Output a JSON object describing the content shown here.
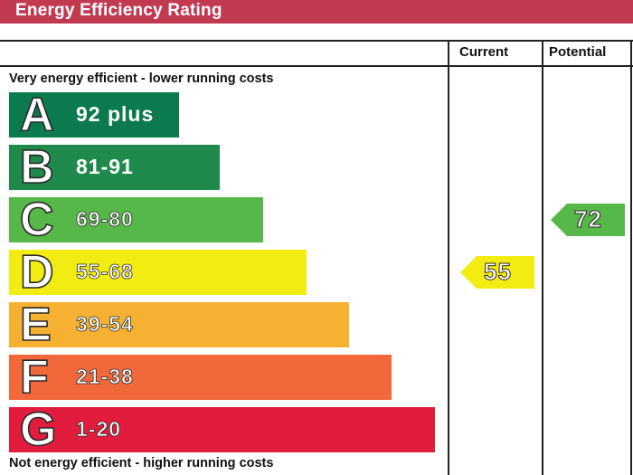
{
  "header": {
    "title": "Energy Efficiency Rating"
  },
  "columns": {
    "current": "Current",
    "potential": "Potential"
  },
  "notes": {
    "top": "Very energy efficient - lower running costs",
    "bottom": "Not energy efficient - higher running costs"
  },
  "chart_data": {
    "type": "bar",
    "title": "Energy Efficiency Rating",
    "categories": [
      "A",
      "B",
      "C",
      "D",
      "E",
      "F",
      "G"
    ],
    "ranges": [
      "92 plus",
      "81-91",
      "69-80",
      "55-68",
      "39-54",
      "21-38",
      "1-20"
    ],
    "colors": [
      "#0b7a4e",
      "#1f8a4c",
      "#56b848",
      "#f2ec12",
      "#f6b132",
      "#f1683a",
      "#e11c3d"
    ],
    "current": {
      "label": "Current",
      "value": 55,
      "band": "D",
      "color": "#f2ec12"
    },
    "potential": {
      "label": "Potential",
      "value": 72,
      "band": "C",
      "color": "#56b848"
    }
  }
}
